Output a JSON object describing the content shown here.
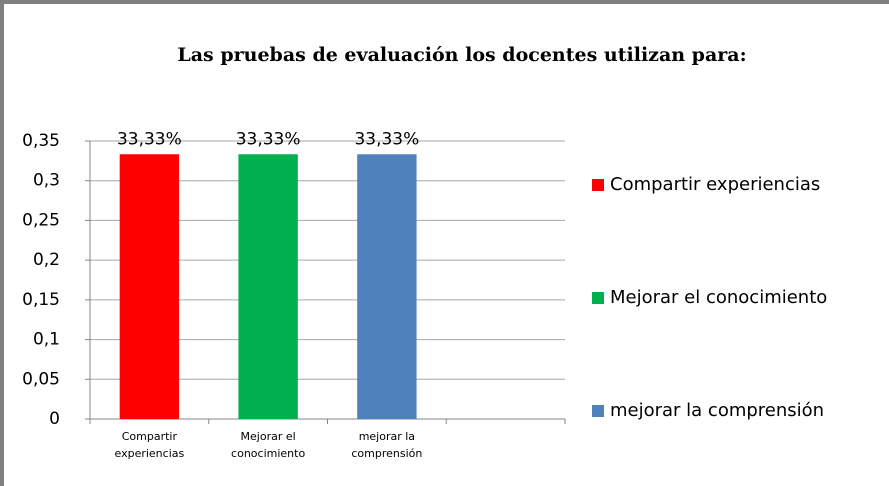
{
  "chart_data": {
    "type": "bar",
    "title": "Las pruebas de evaluación los docentes  utilizan para:",
    "categories": [
      "Compartir experiencias",
      "Mejorar el conocimiento",
      "mejorar la comprensión",
      null
    ],
    "values": [
      0.3333,
      0.3333,
      0.3333,
      null
    ],
    "value_labels": [
      "33,33%",
      "33,33%",
      "33,33%",
      null
    ],
    "colors": [
      "#ff0000",
      "#00b050",
      "#4f81bd",
      null
    ],
    "ylim": [
      0,
      0.35
    ],
    "yticks": [
      0,
      {
        "value": 0.05,
        "label": "0,05"
      },
      {
        "value": 0.1,
        "label": "0,1"
      },
      {
        "value": 0.15,
        "label": "0,15"
      },
      {
        "value": 0.2,
        "label": "0,2"
      },
      {
        "value": 0.25,
        "label": "0,25"
      },
      {
        "value": 0.3,
        "label": "0,3"
      },
      {
        "value": 0.35,
        "label": "0,35"
      }
    ],
    "grid": true,
    "legend": "right"
  }
}
